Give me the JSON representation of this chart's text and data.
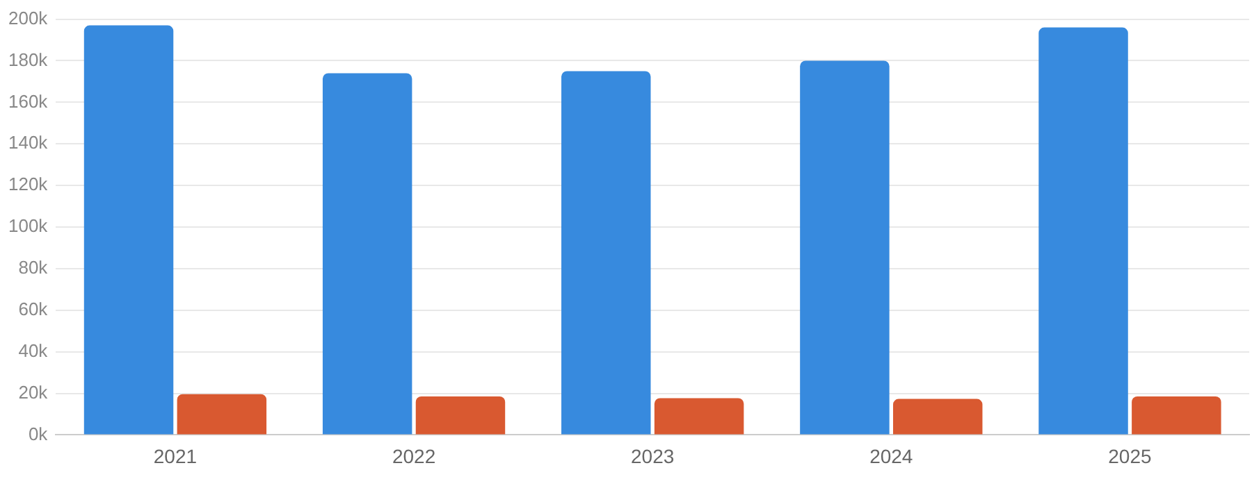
{
  "chart_data": {
    "type": "bar",
    "categories": [
      "2021",
      "2022",
      "2023",
      "2024",
      "2025"
    ],
    "series": [
      {
        "color": "#378ade",
        "values": [
          197,
          174,
          175,
          180,
          196
        ]
      },
      {
        "color": "#d95930",
        "values": [
          19.6,
          18.5,
          17.7,
          17.3,
          18.5
        ]
      }
    ],
    "ylim": [
      0,
      200
    ],
    "yticks": [
      {
        "value": 0,
        "label": "0k"
      },
      {
        "value": 20,
        "label": "20k"
      },
      {
        "value": 40,
        "label": "40k"
      },
      {
        "value": 60,
        "label": "60k"
      },
      {
        "value": 80,
        "label": "80k"
      },
      {
        "value": 100,
        "label": "100k"
      },
      {
        "value": 120,
        "label": "120k"
      },
      {
        "value": 140,
        "label": "140k"
      },
      {
        "value": 160,
        "label": "160k"
      },
      {
        "value": 180,
        "label": "180k"
      },
      {
        "value": 200,
        "label": "200k"
      }
    ],
    "grid": "y",
    "legend": false
  }
}
